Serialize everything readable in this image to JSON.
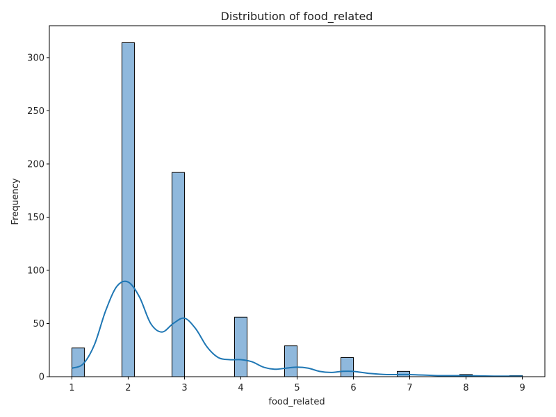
{
  "chart_data": {
    "type": "bar",
    "title": "Distribution of food_related",
    "xlabel": "food_related",
    "ylabel": "Frequency",
    "xlim": [
      0.6,
      9.4
    ],
    "ylim": [
      0,
      330
    ],
    "x_ticks": [
      1,
      2,
      3,
      4,
      5,
      6,
      7,
      8,
      9
    ],
    "y_ticks": [
      0,
      50,
      100,
      150,
      200,
      250,
      300
    ],
    "bin_width": 0.2222,
    "bars": [
      {
        "x0": 1.0,
        "x1": 1.2222,
        "count": 27
      },
      {
        "x0": 1.8889,
        "x1": 2.1111,
        "count": 314
      },
      {
        "x0": 2.7778,
        "x1": 3.0,
        "count": 192
      },
      {
        "x0": 3.8889,
        "x1": 4.1111,
        "count": 56
      },
      {
        "x0": 4.7778,
        "x1": 5.0,
        "count": 29
      },
      {
        "x0": 5.7778,
        "x1": 6.0,
        "count": 18
      },
      {
        "x0": 6.7778,
        "x1": 7.0,
        "count": 5
      },
      {
        "x0": 7.8889,
        "x1": 8.1111,
        "count": 2
      },
      {
        "x0": 8.7778,
        "x1": 9.0,
        "count": 1
      }
    ],
    "kde": {
      "x": [
        1.0,
        1.2,
        1.4,
        1.6,
        1.8,
        2.0,
        2.2,
        2.4,
        2.6,
        2.8,
        3.0,
        3.2,
        3.4,
        3.6,
        3.8,
        4.0,
        4.2,
        4.4,
        4.6,
        4.8,
        5.0,
        5.2,
        5.4,
        5.6,
        5.8,
        6.0,
        6.3,
        6.6,
        7.0,
        7.5,
        8.0,
        8.5,
        9.0
      ],
      "y": [
        8,
        12,
        30,
        62,
        85,
        89,
        75,
        50,
        42,
        50,
        55,
        45,
        28,
        18,
        16,
        16,
        14,
        9,
        7,
        8,
        9,
        8,
        5,
        4,
        5,
        5,
        3,
        2,
        2,
        1,
        1,
        0.5,
        0.5
      ]
    },
    "colors": {
      "bar_fill": "#8fb8dc",
      "bar_edge": "#000000",
      "kde_line": "#1f77b4",
      "axis": "#000000"
    },
    "grid": false,
    "legend": "none"
  }
}
